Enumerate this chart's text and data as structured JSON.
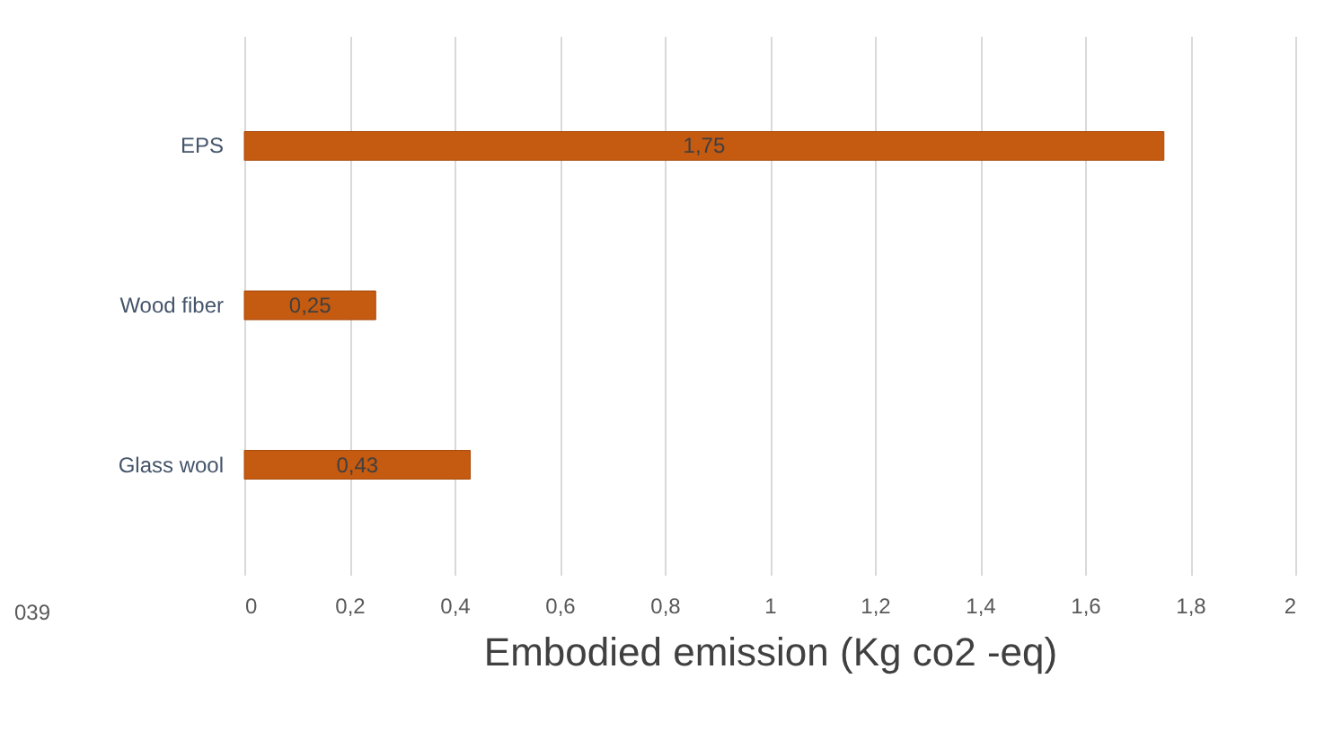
{
  "chart_data": {
    "type": "bar",
    "orientation": "horizontal",
    "categories": [
      "EPS",
      "Wood fiber",
      "Glass wool"
    ],
    "values": [
      1.75,
      0.25,
      0.43
    ],
    "value_labels": [
      "1,75",
      "0,25",
      "0,43"
    ],
    "color": "#c55a11",
    "xlabel": "Embodied emission (Kg co2 -eq)",
    "xlim": [
      0,
      2
    ],
    "xticks": [
      0,
      {
        "value": 0.2,
        "label": "0,2"
      },
      {
        "value": 0.4,
        "label": "0,4"
      },
      {
        "value": 0.6,
        "label": "0,6"
      },
      {
        "value": 0.8,
        "label": "0,8"
      },
      1,
      {
        "value": 1.2,
        "label": "1,2"
      },
      {
        "value": 1.4,
        "label": "1,4"
      },
      {
        "value": 1.6,
        "label": "1,6"
      },
      {
        "value": 1.8,
        "label": "1,8"
      },
      2
    ],
    "grid": "x",
    "annotations": [
      "039"
    ]
  }
}
